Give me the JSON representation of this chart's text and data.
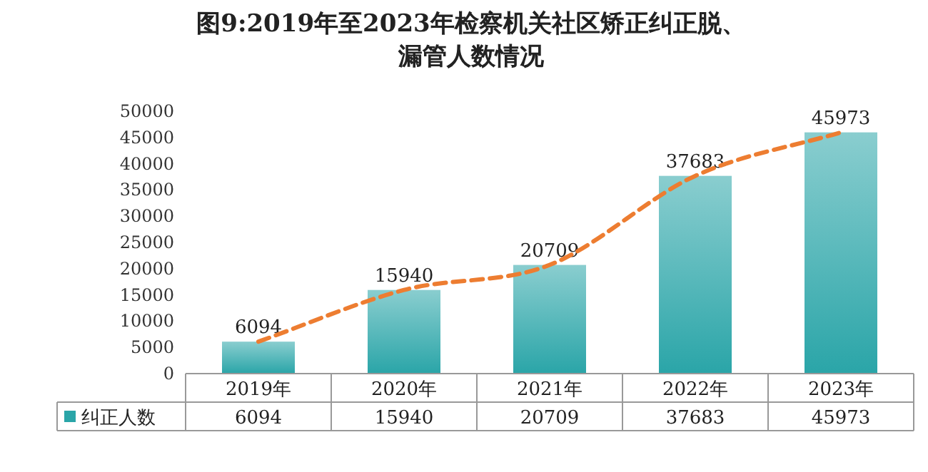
{
  "chart_data": {
    "type": "bar",
    "title": "图9:2019年至2023年检察机关社区矫正纠正脱、漏管人数情况",
    "categories": [
      "2019年",
      "2020年",
      "2021年",
      "2022年",
      "2023年"
    ],
    "series": [
      {
        "name": "纠正人数",
        "color": "#2aa5a8",
        "values": [
          6094,
          15940,
          20709,
          37683,
          45973
        ]
      },
      {
        "type": "line",
        "color": "#ed7d31",
        "line_style": "dashed",
        "values": [
          6094,
          15940,
          20709,
          37683,
          45973
        ]
      }
    ],
    "ylim": [
      0,
      50000
    ],
    "yticks": [
      0,
      5000,
      10000,
      15000,
      20000,
      25000,
      30000,
      35000,
      40000,
      45000,
      50000
    ],
    "data_labels": true,
    "legend": "bottom"
  }
}
